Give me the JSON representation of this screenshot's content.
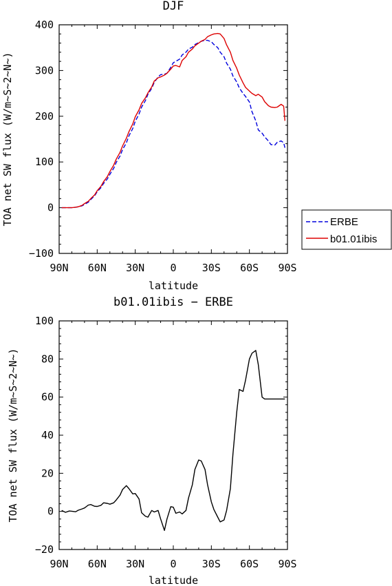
{
  "chart_data": [
    {
      "type": "line",
      "title": "DJF",
      "xlabel": "latitude",
      "ylabel": "TOA net SW flux (W/m~S~2~N~)",
      "xlim": [
        90,
        -90
      ],
      "ylim": [
        -100,
        400
      ],
      "xticks": [
        {
          "v": 90,
          "label": "90N"
        },
        {
          "v": 60,
          "label": "60N"
        },
        {
          "v": 30,
          "label": "30N"
        },
        {
          "v": 0,
          "label": "0"
        },
        {
          "v": -30,
          "label": "30S"
        },
        {
          "v": -60,
          "label": "60S"
        },
        {
          "v": -90,
          "label": "90S"
        }
      ],
      "yticks": [
        {
          "v": 400,
          "label": "400"
        },
        {
          "v": 300,
          "label": "300"
        },
        {
          "v": 200,
          "label": "200"
        },
        {
          "v": 100,
          "label": "100"
        },
        {
          "v": 0,
          "label": "0"
        },
        {
          "v": -100,
          "label": "−100"
        }
      ],
      "legend": {
        "position": "right-outside",
        "entries": [
          "ERBE",
          "b01.01ibis"
        ]
      },
      "series": [
        {
          "name": "ERBE",
          "color": "#0000dd",
          "dash": true,
          "x": [
            88,
            85,
            82,
            80,
            77,
            75,
            72,
            70,
            67,
            65,
            62,
            60,
            57,
            55,
            52,
            50,
            47,
            45,
            42,
            40,
            37,
            35,
            32,
            30,
            27,
            25,
            22,
            20,
            17,
            15,
            12,
            10,
            7,
            5,
            2,
            0,
            -2,
            -5,
            -7,
            -10,
            -12,
            -15,
            -17,
            -20,
            -22,
            -25,
            -27,
            -30,
            -32,
            -35,
            -37,
            -40,
            -42,
            -45,
            -47,
            -50,
            -52,
            -55,
            -57,
            -60,
            -62,
            -65,
            -67,
            -70,
            -72,
            -75,
            -77,
            -80,
            -82,
            -85,
            -87,
            -88
          ],
          "y": [
            0,
            0,
            0,
            0,
            1,
            2,
            4,
            7,
            12,
            18,
            26,
            35,
            44,
            53,
            63,
            73,
            86,
            99,
            113,
            127,
            142,
            157,
            173,
            189,
            205,
            220,
            234,
            248,
            261,
            274,
            286,
            291,
            292,
            294,
            307,
            317,
            320,
            325,
            334,
            340,
            347,
            351,
            357,
            361,
            364,
            366,
            366,
            363,
            357,
            350,
            340,
            330,
            316,
            303,
            288,
            275,
            262,
            250,
            243,
            231,
            210,
            190,
            170,
            163,
            155,
            146,
            138,
            137,
            143,
            146,
            142,
            131
          ]
        },
        {
          "name": "b01.01ibis",
          "color": "#dd0000",
          "dash": false,
          "x": [
            88,
            85,
            82,
            80,
            77,
            75,
            72,
            70,
            67,
            65,
            62,
            60,
            57,
            55,
            52,
            50,
            47,
            45,
            42,
            40,
            37,
            35,
            32,
            30,
            27,
            25,
            22,
            20,
            17,
            15,
            12,
            10,
            7,
            5,
            2,
            0,
            -2,
            -5,
            -7,
            -10,
            -12,
            -15,
            -17,
            -20,
            -22,
            -25,
            -27,
            -30,
            -32,
            -35,
            -37,
            -40,
            -42,
            -45,
            -47,
            -50,
            -52,
            -55,
            -57,
            -60,
            -62,
            -65,
            -67,
            -70,
            -72,
            -75,
            -77,
            -80,
            -82,
            -85,
            -87,
            -88
          ],
          "y": [
            0,
            0,
            0,
            0,
            1,
            2,
            5,
            9,
            14,
            20,
            28,
            37,
            47,
            57,
            68,
            79,
            93,
            106,
            121,
            135,
            152,
            166,
            183,
            199,
            214,
            228,
            240,
            251,
            264,
            277,
            284,
            286,
            290,
            294,
            303,
            310,
            311,
            308,
            322,
            330,
            340,
            347,
            354,
            360,
            364,
            368,
            374,
            378,
            380,
            381,
            380,
            370,
            356,
            340,
            322,
            305,
            290,
            273,
            263,
            255,
            250,
            245,
            248,
            242,
            232,
            223,
            220,
            219,
            220,
            226,
            222,
            190
          ]
        }
      ]
    },
    {
      "type": "line",
      "title": "b01.01ibis − ERBE",
      "xlabel": "latitude",
      "ylabel": "TOA net SW flux (W/m~S~2~N~)",
      "xlim": [
        90,
        -90
      ],
      "ylim": [
        -20,
        100
      ],
      "xticks": [
        {
          "v": 90,
          "label": "90N"
        },
        {
          "v": 60,
          "label": "60N"
        },
        {
          "v": 30,
          "label": "30N"
        },
        {
          "v": 0,
          "label": "0"
        },
        {
          "v": -30,
          "label": "30S"
        },
        {
          "v": -60,
          "label": "60S"
        },
        {
          "v": -90,
          "label": "90S"
        }
      ],
      "yticks": [
        {
          "v": 100,
          "label": "100"
        },
        {
          "v": 80,
          "label": "80"
        },
        {
          "v": 60,
          "label": "60"
        },
        {
          "v": 40,
          "label": "40"
        },
        {
          "v": 20,
          "label": "20"
        },
        {
          "v": 0,
          "label": "0"
        },
        {
          "v": -20,
          "label": "−20"
        }
      ],
      "series": [
        {
          "name": "b01.01ibis − ERBE",
          "color": "#000000",
          "dash": false,
          "x": [
            88,
            85,
            82,
            80,
            77,
            75,
            72,
            70,
            67,
            65,
            62,
            60,
            57,
            55,
            52,
            50,
            47,
            45,
            42,
            40,
            37,
            35,
            32,
            30,
            27,
            25,
            22,
            20,
            17,
            15,
            12,
            10,
            7,
            5,
            2,
            0,
            -2,
            -5,
            -7,
            -10,
            -12,
            -15,
            -17,
            -20,
            -22,
            -25,
            -27,
            -30,
            -32,
            -35,
            -37,
            -40,
            -42,
            -45,
            -47,
            -50,
            -52,
            -55,
            -57,
            -60,
            -62,
            -65,
            -67,
            -70,
            -72,
            -75,
            -77,
            -80,
            -82,
            -85,
            -87,
            -88
          ],
          "y": [
            0.5,
            -0.5,
            0.2,
            0.1,
            -0.2,
            0.6,
            1.3,
            1.8,
            3.3,
            3.6,
            2.7,
            2.6,
            3.2,
            4.5,
            4.2,
            3.8,
            4.5,
            6.0,
            8.5,
            11.5,
            13.5,
            12,
            9.2,
            9.4,
            6.5,
            -0.7,
            -2.5,
            -3,
            0.5,
            -0.3,
            0.5,
            -4,
            -10,
            -4,
            2.5,
            2.2,
            -1,
            -0.3,
            -1.3,
            0.5,
            7,
            14,
            22,
            27,
            26.5,
            22,
            14,
            5,
            1,
            -3,
            -5.5,
            -4.5,
            0.5,
            12,
            30,
            52,
            64,
            63,
            69,
            80,
            83,
            84.5,
            77,
            60,
            59,
            59,
            59,
            59,
            59,
            59,
            59,
            59
          ]
        }
      ]
    }
  ]
}
